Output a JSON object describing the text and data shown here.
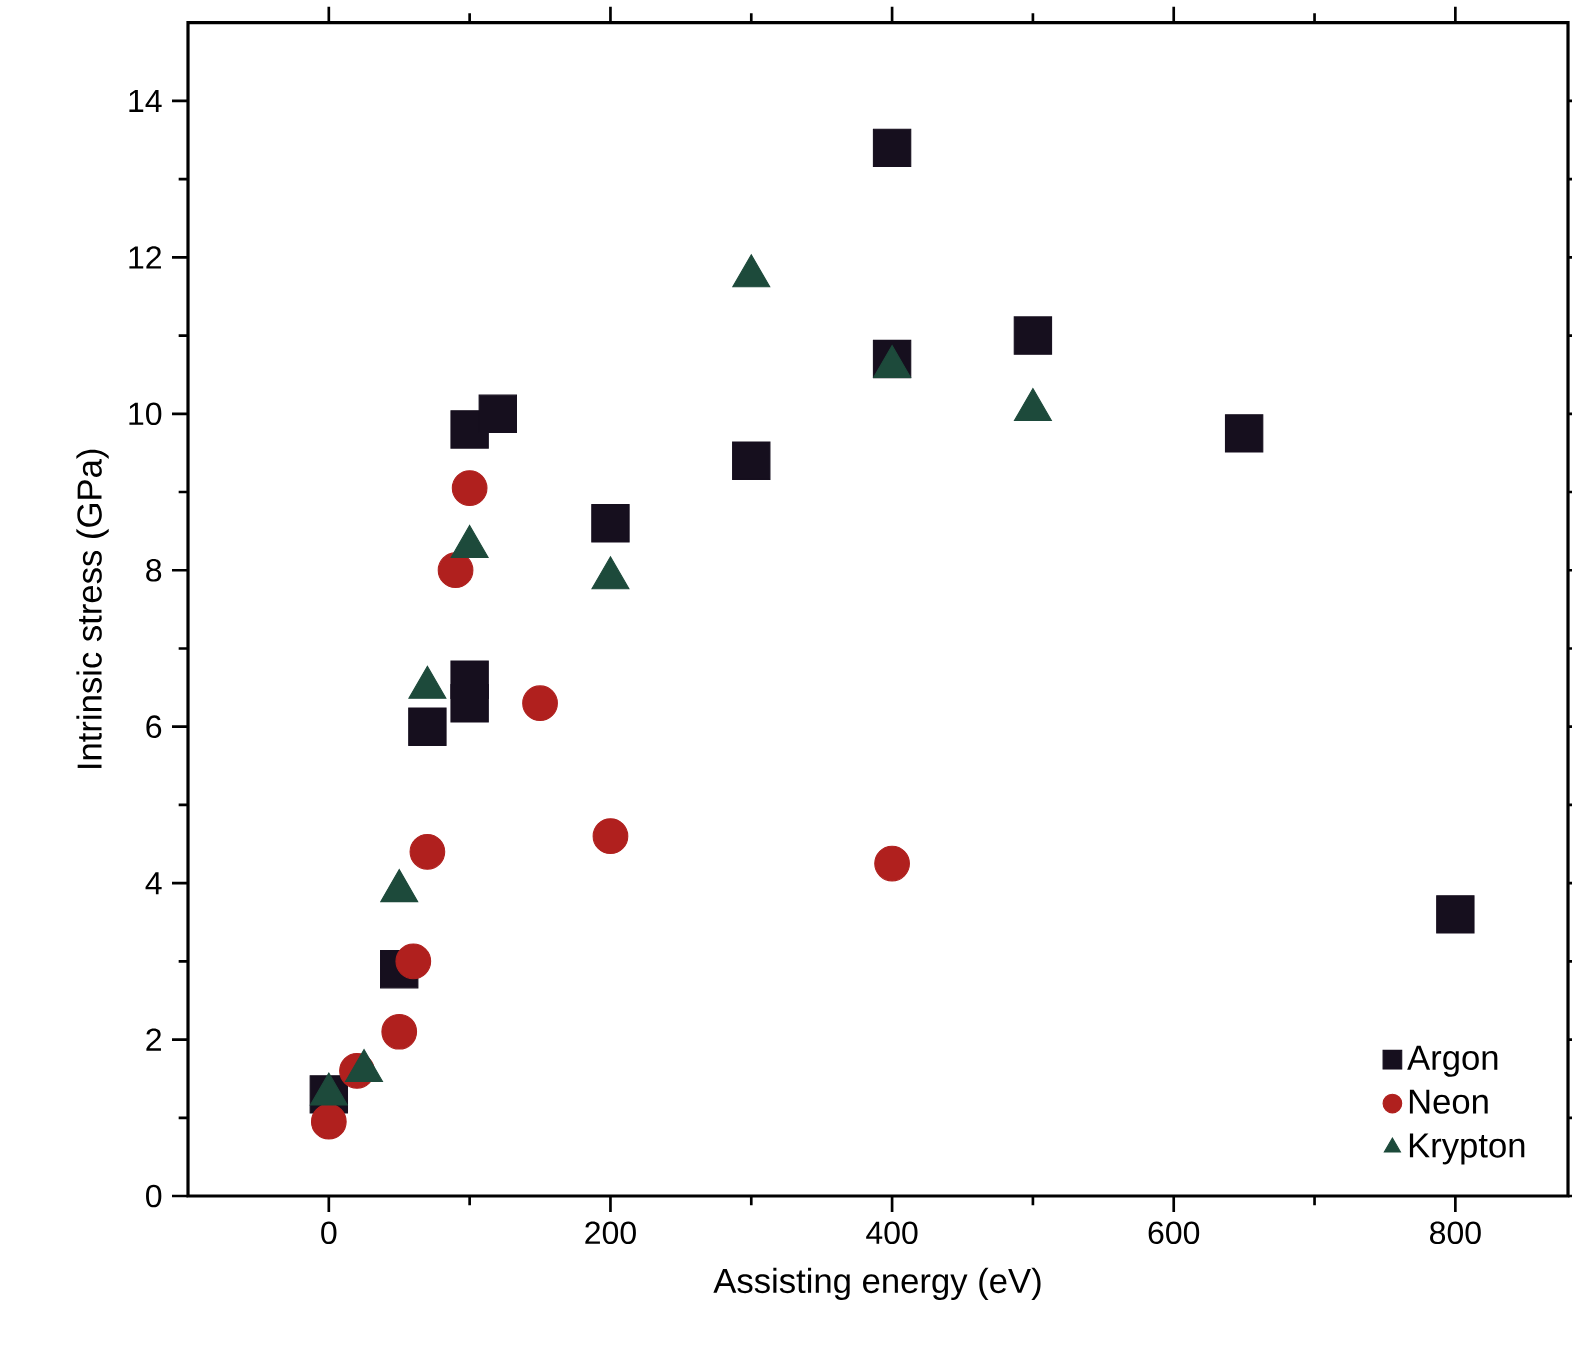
{
  "chart_data": {
    "type": "scatter",
    "xlabel": "Assisting energy (eV)",
    "ylabel": "Intrinsic stress (GPa)",
    "xlim": [
      -100,
      880
    ],
    "ylim": [
      0,
      15
    ],
    "xticks": [
      0,
      200,
      400,
      600,
      800
    ],
    "yticks": [
      0,
      2,
      4,
      6,
      8,
      10,
      12,
      14
    ],
    "legend": "bottom right",
    "grid": false,
    "series": [
      {
        "name": "Argon",
        "color": "#160f1e",
        "marker": "square",
        "x": [
          0,
          50,
          70,
          100,
          100,
          100,
          120,
          200,
          300,
          400,
          400,
          500,
          650,
          800
        ],
        "values": [
          1.3,
          2.9,
          6.0,
          6.3,
          6.6,
          9.8,
          10.0,
          8.6,
          9.4,
          13.4,
          10.7,
          11.0,
          9.75,
          3.6
        ]
      },
      {
        "name": "Neon",
        "color": "#b0201e",
        "marker": "circle",
        "x": [
          0,
          20,
          50,
          60,
          70,
          90,
          100,
          150,
          200,
          400
        ],
        "values": [
          0.95,
          1.6,
          2.1,
          3.0,
          4.4,
          8.0,
          9.05,
          6.3,
          4.6,
          4.25
        ]
      },
      {
        "name": "Krypton",
        "color": "#1d4a3b",
        "marker": "triangle",
        "x": [
          0,
          25,
          50,
          70,
          100,
          200,
          300,
          400,
          500
        ],
        "values": [
          1.3,
          1.6,
          3.9,
          6.5,
          8.3,
          7.9,
          11.76,
          10.6,
          10.05
        ]
      }
    ]
  }
}
